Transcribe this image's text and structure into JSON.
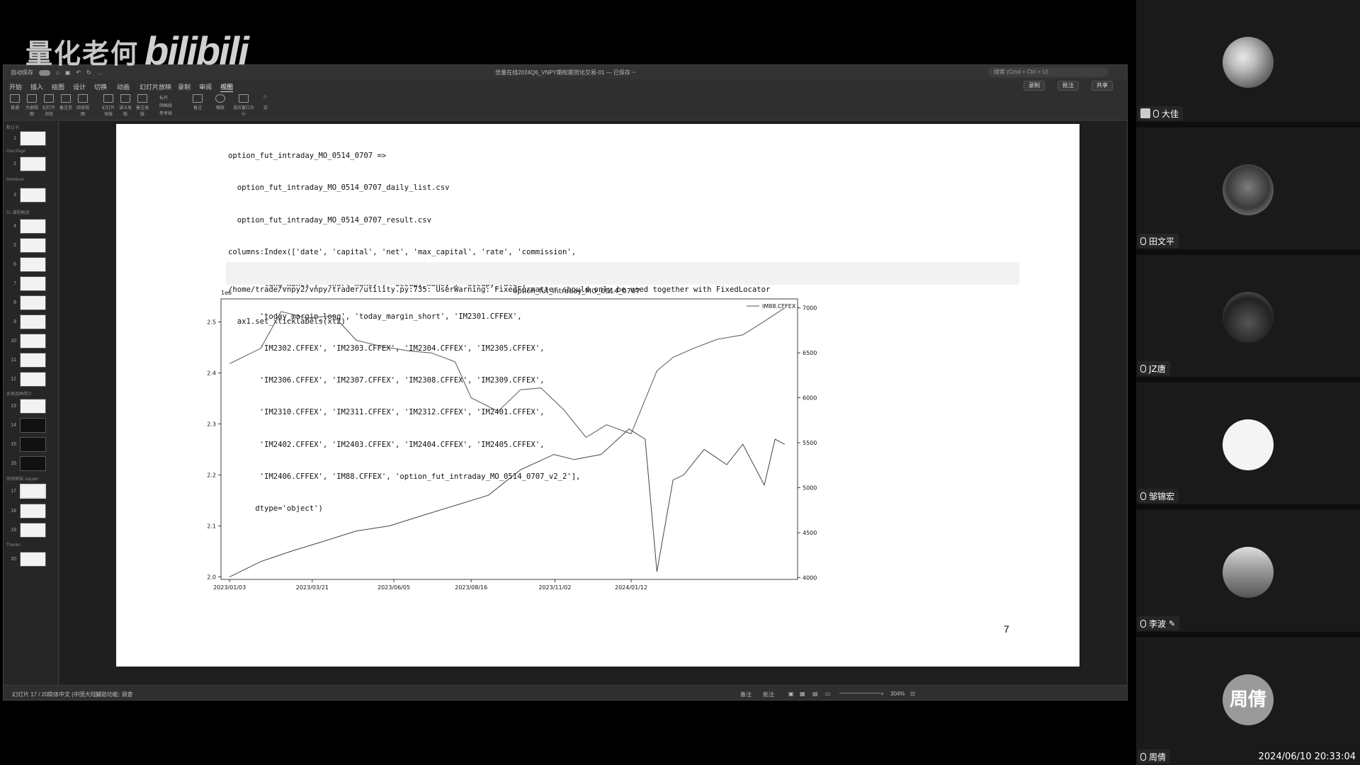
{
  "watermark": {
    "channel": "量化老何",
    "logo": "bilibili"
  },
  "window": {
    "autosave": "自动保存",
    "title": "优量在线2024Q6_VNPY期权期货化交易-01 — 已保存 ~",
    "search_placeholder": "搜索 (Cmd + Ctrl + U)"
  },
  "tabs": [
    "开始",
    "插入",
    "绘图",
    "设计",
    "切换",
    "动画",
    "幻灯片放映",
    "录制",
    "审阅",
    "视图"
  ],
  "active_tab": "视图",
  "tab_buttons": {
    "record": "录制",
    "comment": "批注",
    "share": "共享"
  },
  "ribbon": [
    "普通",
    "大纲视图",
    "幻灯片浏览",
    "备注页",
    "阅读视图",
    "幻灯片母版",
    "讲义母版",
    "备注母版",
    "标尺",
    "网格线",
    "参考线",
    "备注",
    "缩放",
    "适应窗口大小",
    "宏"
  ],
  "sections": [
    "默认节",
    "One Page",
    "Introduce",
    "01 课程概述",
    "各类品种简介",
    "回测框架 Jupyter",
    "Thanks"
  ],
  "slides": [
    "1",
    "2",
    "3",
    "4",
    "5",
    "6",
    "7",
    "8",
    "9",
    "10",
    "11",
    "12",
    "13",
    "14",
    "15",
    "16",
    "17",
    "18",
    "19",
    "20"
  ],
  "code_lines": [
    "option_fut_intraday_MO_0514_0707 =>",
    "  option_fut_intraday_MO_0514_0707_daily_list.csv",
    "  option_fut_intraday_MO_0514_0707_result.csv",
    "columns:Index(['date', 'capital', 'net', 'max_capital', 'rate', 'commission',",
    "       'long_money', 'short_money', 'occupy_money', 'occupy_rate',",
    "       'today_margin_long', 'today_margin_short', 'IM2301.CFFEX',",
    "       'IM2302.CFFEX', 'IM2303.CFFEX', 'IM2304.CFFEX', 'IM2305.CFFEX',",
    "       'IM2306.CFFEX', 'IM2307.CFFEX', 'IM2308.CFFEX', 'IM2309.CFFEX',",
    "       'IM2310.CFFEX', 'IM2311.CFFEX', 'IM2312.CFFEX', 'IM2401.CFFEX',",
    "       'IM2402.CFFEX', 'IM2403.CFFEX', 'IM2404.CFFEX', 'IM2405.CFFEX',",
    "       'IM2406.CFFEX', 'IM88.CFFEX', 'option_fut_intraday_MO_0514_0707_v2_2'],",
    "      dtype='object')"
  ],
  "warning_lines": [
    "/home/trade/vnpy2/vnpy/trader/utility.py:735: UserWarning: FixedFormatter should only be used together with FixedLocator",
    "  ax1.set_xticklabels(xt2)"
  ],
  "slide_number": "7",
  "chart_data": {
    "type": "line",
    "title": "option_fut_intraday_MO_0514_0707",
    "left_axis": {
      "ylim": [
        1.995,
        2.545
      ],
      "ticks": [
        "2.0",
        "2.1",
        "2.2",
        "2.3",
        "2.4",
        "2.5"
      ],
      "offset_label": "1e6"
    },
    "right_axis": {
      "ylim": [
        3980,
        7100
      ],
      "ticks": [
        "4000",
        "4500",
        "5000",
        "5500",
        "6000",
        "6500",
        "7000"
      ]
    },
    "xlim": [
      "2023/01/03",
      "2024/06/07"
    ],
    "x_ticks": [
      "2023/01/03",
      "2023/03/21",
      "2023/06/05",
      "2023/08/16",
      "2023/11/02",
      "2024/01/12"
    ],
    "legend": {
      "position": "top-right",
      "entries": [
        "IM88.CFFEX"
      ]
    },
    "grid": false,
    "series": [
      {
        "axis": "left",
        "x": [
          "2023/01/03",
          "2023/02/01",
          "2023/03/01",
          "2023/04/01",
          "2023/05/01",
          "2023/06/01",
          "2023/07/01",
          "2023/08/01",
          "2023/09/01",
          "2023/10/01",
          "2023/11/01",
          "2023/11/20",
          "2023/12/15",
          "2024/01/10",
          "2024/01/25",
          "2024/02/05",
          "2024/02/20",
          "2024/03/01",
          "2024/03/20",
          "2024/04/10",
          "2024/04/25",
          "2024/05/15",
          "2024/05/25",
          "2024/06/03"
        ],
        "values": [
          2.0,
          2.03,
          2.05,
          2.07,
          2.09,
          2.1,
          2.12,
          2.14,
          2.16,
          2.21,
          2.24,
          2.23,
          2.24,
          2.29,
          2.27,
          2.01,
          2.19,
          2.2,
          2.25,
          2.22,
          2.26,
          2.18,
          2.27,
          2.26
        ]
      },
      {
        "axis": "right",
        "name": "IM88.CFFEX",
        "x": [
          "2023/01/03",
          "2023/02/01",
          "2023/02/20",
          "2023/03/15",
          "2023/04/10",
          "2023/05/01",
          "2023/05/25",
          "2023/06/20",
          "2023/07/10",
          "2023/08/01",
          "2023/08/16",
          "2023/09/10",
          "2023/10/01",
          "2023/10/20",
          "2023/11/10",
          "2023/12/01",
          "2023/12/20",
          "2024/01/12",
          "2024/02/05",
          "2024/02/20",
          "2024/03/10",
          "2024/04/01",
          "2024/04/25",
          "2024/05/15",
          "2024/06/03"
        ],
        "values": [
          6380,
          6550,
          6960,
          6890,
          6910,
          6640,
          6570,
          6520,
          6500,
          6400,
          6000,
          5850,
          6090,
          6110,
          5870,
          5560,
          5700,
          5600,
          6300,
          6450,
          6550,
          6650,
          6700,
          6850,
          7000
        ]
      }
    ]
  },
  "statusbar": {
    "slide_counter": "幻灯片 17 / 20",
    "language": "简体中文 (中国大陆)",
    "accessibility": "辅助功能: 调查",
    "notes": "备注",
    "comments": "批注",
    "zoom": "304%"
  },
  "participants": [
    {
      "name": "大佳"
    },
    {
      "name": "田文平"
    },
    {
      "name": "JZ唐"
    },
    {
      "name": "邹锦宏"
    },
    {
      "name": "李波"
    },
    {
      "name": "周倩",
      "initials": "周倩"
    }
  ],
  "timestamp": "2024/06/10 20:33:04"
}
